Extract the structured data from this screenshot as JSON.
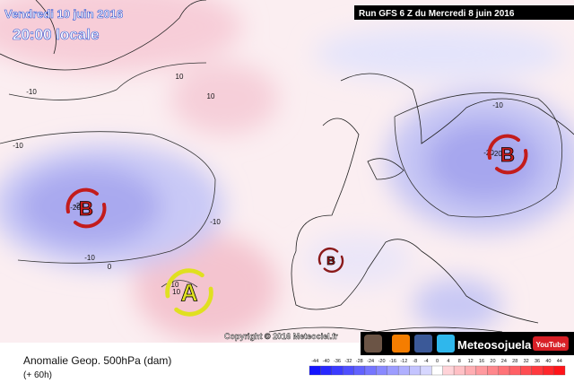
{
  "header": {
    "date": "Vendredi 10 juin 2016",
    "time": "20:00 locale",
    "run": "Run GFS 6 Z du Mercredi 8 juin 2016"
  },
  "map": {
    "contour_labels": [
      "-10",
      "10",
      "10",
      "-10",
      "-10",
      "-20",
      "-10",
      "10",
      "-10",
      "-20",
      "0"
    ],
    "systems": [
      {
        "letter": "B",
        "value": "-20"
      },
      {
        "letter": "B",
        "value": "-20"
      },
      {
        "letter": "B"
      },
      {
        "letter": "A",
        "value": "10"
      }
    ],
    "copyright": "Copyright © 2016 Meteociel.fr"
  },
  "footer": {
    "title": "Anomalie Geop. 500hPa (dam)",
    "lead": "(+ 60h)",
    "brand": "Meteosojuela",
    "youtube": "YouTube"
  },
  "scale": {
    "ticks": [
      -44,
      -40,
      -36,
      -32,
      -28,
      -24,
      -20,
      -16,
      -12,
      -8,
      -4,
      0,
      4,
      8,
      12,
      16,
      20,
      24,
      28,
      32,
      36,
      40,
      44
    ]
  }
}
